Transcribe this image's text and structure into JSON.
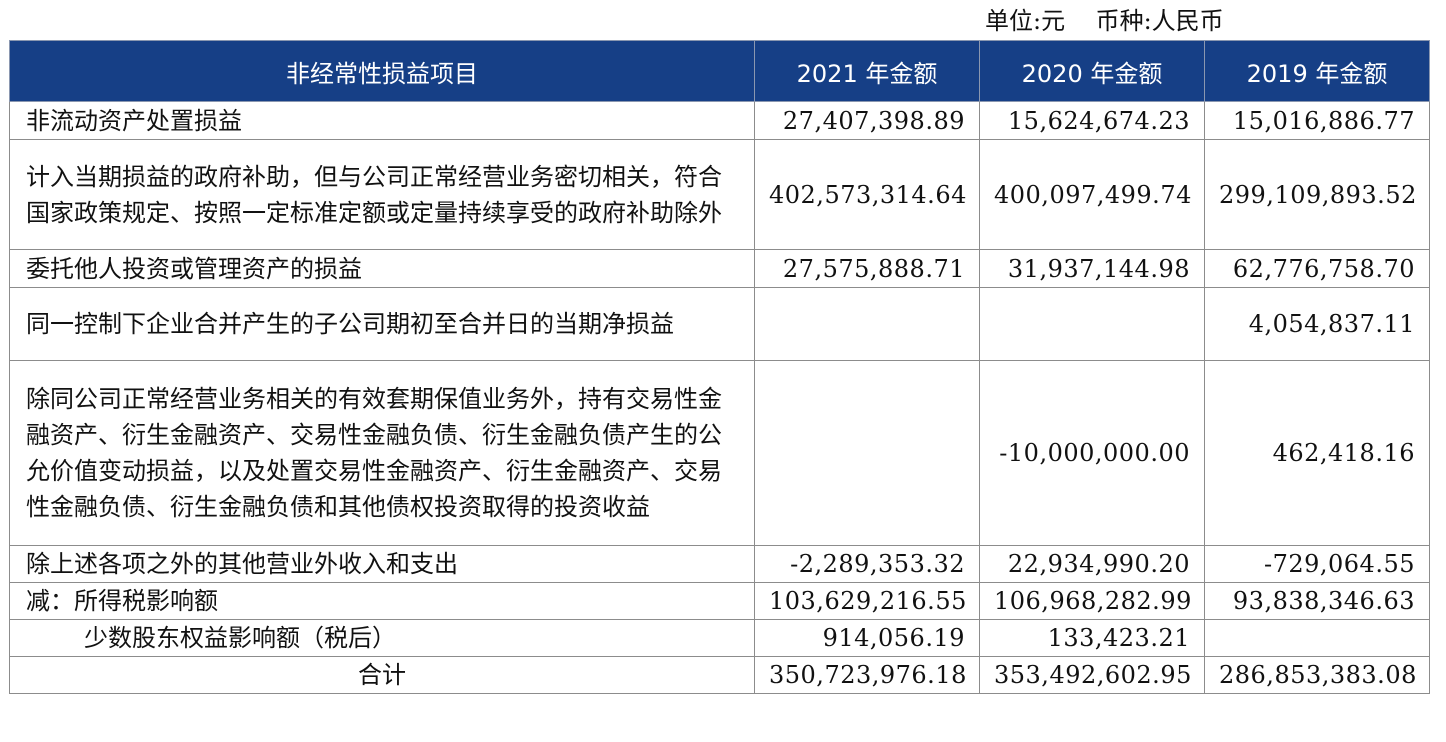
{
  "unit_text": "单位:元    币种:人民币",
  "headers": [
    "非经常性损益项目",
    "2021 年金额",
    "2020 年金额",
    "2019 年金额"
  ],
  "rows": [
    {
      "item": "非流动资产处置损益",
      "y2021": "27,407,398.89",
      "y2020": "15,624,674.23",
      "y2019": "15,016,886.77"
    },
    {
      "item": "计入当期损益的政府补助，但与公司正常经营业务密切相关，符合国家政策规定、按照一定标准定额或定量持续享受的政府补助除外",
      "y2021": "402,573,314.64",
      "y2020": "400,097,499.74",
      "y2019": "299,109,893.52"
    },
    {
      "item": "委托他人投资或管理资产的损益",
      "y2021": "27,575,888.71",
      "y2020": "31,937,144.98",
      "y2019": "62,776,758.70"
    },
    {
      "item": "同一控制下企业合并产生的子公司期初至合并日的当期净损益",
      "y2021": "",
      "y2020": "",
      "y2019": "4,054,837.11"
    },
    {
      "item": "除同公司正常经营业务相关的有效套期保值业务外，持有交易性金融资产、衍生金融资产、交易性金融负债、衍生金融负债产生的公允价值变动损益，以及处置交易性金融资产、衍生金融资产、交易性金融负债、衍生金融负债和其他债权投资取得的投资收益",
      "y2021": "",
      "y2020": "-10,000,000.00",
      "y2019": "462,418.16"
    },
    {
      "item": "除上述各项之外的其他营业外收入和支出",
      "y2021": "-2,289,353.32",
      "y2020": "22,934,990.20",
      "y2019": "-729,064.55"
    },
    {
      "item": "减：所得税影响额",
      "y2021": "103,629,216.55",
      "y2020": "106,968,282.99",
      "y2019": "93,838,346.63"
    },
    {
      "item": "少数股东权益影响额（税后）",
      "y2021": "914,056.19",
      "y2020": "133,423.21",
      "y2019": ""
    },
    {
      "item": "合计",
      "y2021": "350,723,976.18",
      "y2020": "353,492,602.95",
      "y2019": "286,853,383.08"
    }
  ],
  "colors": {
    "header_bg": "#163F86",
    "header_text": "#FFFFFF",
    "border": "#8C8C8C"
  }
}
